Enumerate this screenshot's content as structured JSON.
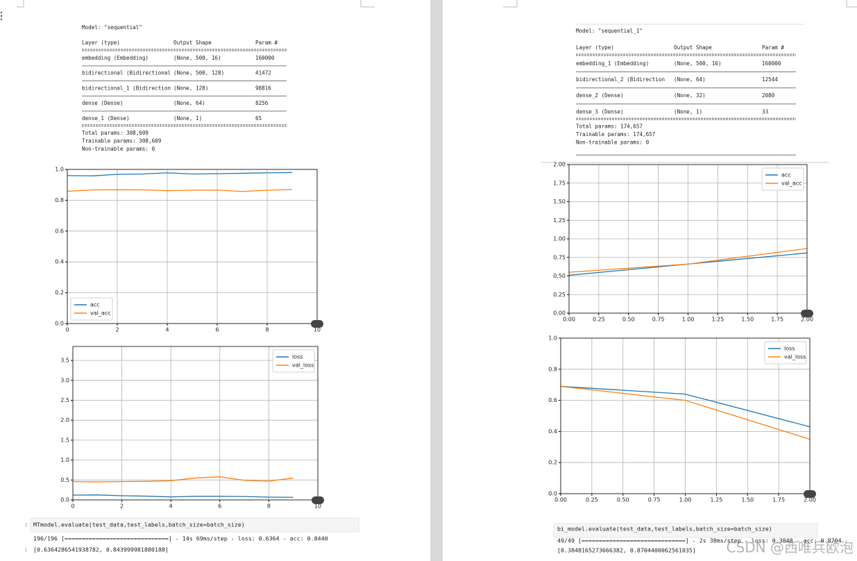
{
  "chart_data": [
    {
      "type": "line",
      "x": [
        0,
        1,
        2,
        3,
        4,
        5,
        6,
        7,
        8,
        9
      ],
      "xlim": [
        0,
        10
      ],
      "xticks": [
        0,
        2,
        4,
        6,
        8,
        10
      ],
      "ylim": [
        0,
        1
      ],
      "yticks": [
        {
          "value": 0,
          "label": "0.0"
        },
        0.2,
        0.4,
        0.6,
        0.8,
        {
          "value": 1,
          "label": "1.0"
        }
      ],
      "grid": true,
      "legend": "lower left",
      "series": [
        {
          "name": "acc",
          "color": "#1f77b4",
          "values": [
            0.96,
            0.958,
            0.968,
            0.97,
            0.978,
            0.97,
            0.972,
            0.975,
            0.978,
            0.98
          ]
        },
        {
          "name": "val_acc",
          "color": "#ff7f0e",
          "values": [
            0.858,
            0.867,
            0.868,
            0.867,
            0.862,
            0.865,
            0.866,
            0.857,
            0.865,
            0.87
          ]
        }
      ]
    },
    {
      "type": "line",
      "x": [
        0,
        1,
        2,
        3,
        4,
        5,
        6,
        7,
        8,
        9
      ],
      "xlim": [
        0,
        10
      ],
      "xticks": [
        0,
        2,
        4,
        6,
        8,
        10
      ],
      "ylim": [
        0,
        3.85
      ],
      "yticks": [
        {
          "value": 0,
          "label": "0.0"
        },
        0.5,
        {
          "value": 1,
          "label": "1.0"
        },
        1.5,
        {
          "value": 2,
          "label": "2.0"
        },
        2.5,
        {
          "value": 3,
          "label": "3.0"
        },
        3.5
      ],
      "grid": true,
      "legend": "upper right",
      "series": [
        {
          "name": "loss",
          "color": "#1f77b4",
          "values": [
            0.12,
            0.125,
            0.105,
            0.095,
            0.075,
            0.09,
            0.09,
            0.085,
            0.07,
            0.065
          ]
        },
        {
          "name": "val_loss",
          "color": "#ff7f0e",
          "values": [
            0.46,
            0.45,
            0.46,
            0.465,
            0.48,
            0.55,
            0.58,
            0.49,
            0.47,
            0.55
          ]
        }
      ]
    },
    {
      "type": "line",
      "x": [
        0,
        1,
        2
      ],
      "xlim": [
        0,
        2
      ],
      "xticks": [
        {
          "value": 0,
          "label": "0.00"
        },
        0.25,
        {
          "value": 0.5,
          "label": "0.50"
        },
        0.75,
        {
          "value": 1,
          "label": "1.00"
        },
        1.25,
        {
          "value": 1.5,
          "label": "1.50"
        },
        1.75,
        {
          "value": 2,
          "label": "2.00"
        }
      ],
      "ylim": [
        0,
        2
      ],
      "yticks": [
        {
          "value": 0,
          "label": "0.00"
        },
        0.25,
        {
          "value": 0.5,
          "label": "0.50"
        },
        0.75,
        {
          "value": 1,
          "label": "1.00"
        },
        1.25,
        {
          "value": 1.5,
          "label": "1.50"
        },
        1.75,
        {
          "value": 2,
          "label": "2.00"
        }
      ],
      "grid": true,
      "legend": "upper right",
      "series": [
        {
          "name": "acc",
          "color": "#1f77b4",
          "values": [
            0.51,
            0.66,
            0.81
          ]
        },
        {
          "name": "val_acc",
          "color": "#ff7f0e",
          "values": [
            0.55,
            0.66,
            0.87
          ]
        }
      ]
    },
    {
      "type": "line",
      "x": [
        0,
        1,
        2
      ],
      "xlim": [
        0,
        2
      ],
      "xticks": [
        {
          "value": 0,
          "label": "0.00"
        },
        0.25,
        {
          "value": 0.5,
          "label": "0.50"
        },
        0.75,
        {
          "value": 1,
          "label": "1.00"
        },
        1.25,
        {
          "value": 1.5,
          "label": "1.50"
        },
        1.75,
        {
          "value": 2,
          "label": "2.00"
        }
      ],
      "ylim": [
        0,
        1
      ],
      "yticks": [
        {
          "value": 0,
          "label": "0.0"
        },
        0.2,
        0.4,
        0.6,
        0.8,
        {
          "value": 1,
          "label": "1.0"
        }
      ],
      "grid": true,
      "legend": "upper right",
      "series": [
        {
          "name": "loss",
          "color": "#1f77b4",
          "values": [
            0.69,
            0.64,
            0.43
          ]
        },
        {
          "name": "val_loss",
          "color": "#ff7f0e",
          "values": [
            0.69,
            0.6,
            0.35
          ]
        }
      ]
    }
  ],
  "summaries": [
    {
      "model": "Model: \"sequential\"",
      "header": [
        "Layer (type)",
        "Output Shape",
        "Param #"
      ],
      "rows": [
        [
          "embedding (Embedding)",
          "(None, 500, 16)",
          160000
        ],
        [
          "bidirectional (Bidirectional",
          "(None, 500, 128)",
          41472
        ],
        [
          "bidirectional_1 (Bidirection",
          "(None, 128)",
          98816
        ],
        [
          "dense (Dense)",
          "(None, 64)",
          8256
        ],
        [
          "dense_1 (Dense)",
          "(None, 1)",
          65
        ]
      ],
      "totals": [
        "Total params: 308,609",
        "Trainable params: 308,609",
        "Non-trainable params: 0"
      ]
    },
    {
      "model": "Model: \"sequential_1\"",
      "header": [
        "Layer (type)",
        "Output Shape",
        "Param #"
      ],
      "rows": [
        [
          "embedding_1 (Embedding)",
          "(None, 500, 16)",
          160000
        ],
        [
          "bidirectional_2 (Bidirection",
          "(None, 64)",
          12544
        ],
        [
          "dense_2 (Dense)",
          "(None, 32)",
          2080
        ],
        [
          "dense_3 (Dense)",
          "(None, 1)",
          33
        ]
      ],
      "totals": [
        "Total params: 174,657",
        "Trainable params: 174,657",
        "Non-trainable params: 0"
      ]
    }
  ],
  "cells": [
    {
      "prompt": ":",
      "code": "MTmodel.evaluate(test_data,test_labels,batch_size=batch_size)",
      "output": "196/196 [==============================] - 14s 69ms/step - loss: 0.6364 - acc: 0.8440",
      "result": "[0.6364286541938782, 0.843999981880188]"
    },
    {
      "code": "bi_model.evaluate(test_data,test_labels,batch_size=batch_size)",
      "output": "49/49 [==============================] - 2s 38ms/step - loss: 0.3848 - acc: 0.8704",
      "result": "[0.3848165273666382, 0.8704400062561035]"
    }
  ],
  "watermark": "CSDN @西唯兵欧泡"
}
